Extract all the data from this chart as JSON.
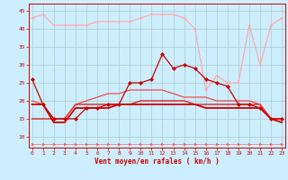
{
  "xlabel": "Vent moyen/en rafales ( km/h )",
  "bg_color": "#cceeff",
  "grid_color": "#aacccc",
  "hours": [
    0,
    1,
    2,
    3,
    4,
    5,
    6,
    7,
    8,
    9,
    10,
    11,
    12,
    13,
    14,
    15,
    16,
    17,
    18,
    19,
    20,
    21,
    22,
    23
  ],
  "ylim": [
    7,
    47
  ],
  "yticks": [
    10,
    15,
    20,
    25,
    30,
    35,
    40,
    45
  ],
  "gust_pink": [
    43,
    44,
    41,
    41,
    41,
    41,
    42,
    42,
    42,
    42,
    43,
    44,
    44,
    44,
    43,
    40,
    23,
    27,
    25,
    25,
    41,
    30,
    41,
    43
  ],
  "gust_red": [
    26,
    19,
    15,
    15,
    15,
    18,
    18,
    19,
    19,
    25,
    25,
    26,
    33,
    29,
    30,
    29,
    26,
    25,
    24,
    19,
    19,
    18,
    15,
    15
  ],
  "avg1": [
    15,
    15,
    15,
    15,
    19,
    19,
    19,
    19,
    19,
    19,
    20,
    20,
    20,
    20,
    20,
    19,
    19,
    19,
    19,
    19,
    19,
    19,
    15,
    15
  ],
  "avg2": [
    19,
    19,
    14,
    14,
    18,
    18,
    18,
    18,
    19,
    19,
    19,
    19,
    19,
    19,
    19,
    19,
    18,
    18,
    18,
    18,
    18,
    18,
    15,
    14
  ],
  "avg3": [
    20,
    19,
    15,
    15,
    19,
    20,
    21,
    22,
    22,
    23,
    23,
    23,
    23,
    22,
    21,
    21,
    21,
    20,
    20,
    20,
    20,
    19,
    15,
    15
  ],
  "direction": [
    8,
    8,
    8,
    8,
    8,
    8,
    8,
    8,
    8,
    8,
    8,
    8,
    8,
    8,
    8,
    8,
    8,
    8,
    8,
    8,
    8,
    8,
    8,
    8
  ],
  "c_pink": "#ffaaaa",
  "c_red": "#cc0000",
  "c_avg1": "#dd2222",
  "c_avg2": "#cc0000",
  "c_avg3": "#ff3333",
  "c_dir": "#ff5555"
}
